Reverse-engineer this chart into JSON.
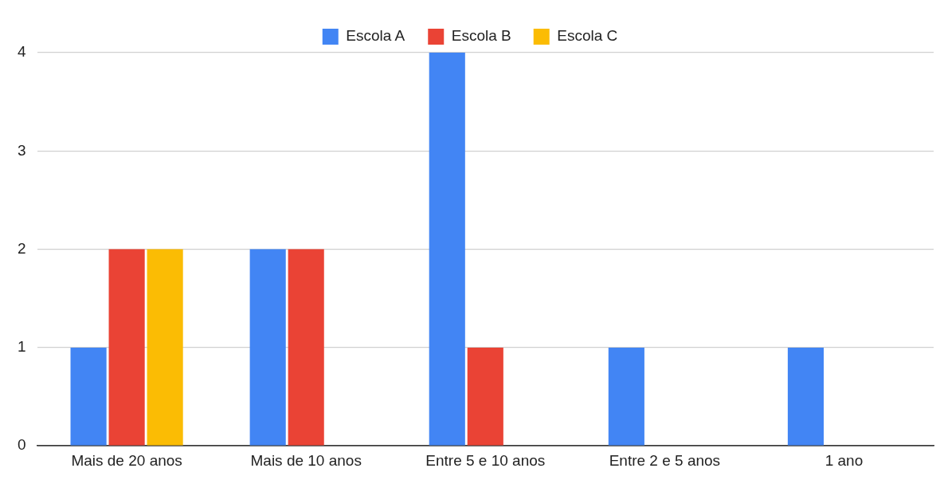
{
  "chart_data": {
    "type": "bar",
    "categories": [
      "Mais de 20 anos",
      "Mais de 10 anos",
      "Entre 5 e 10 anos",
      "Entre 2 e 5 anos",
      "1 ano"
    ],
    "series": [
      {
        "name": "Escola A",
        "color": "#4285f4",
        "values": [
          1,
          2,
          4,
          1,
          1
        ]
      },
      {
        "name": "Escola B",
        "color": "#ea4335",
        "values": [
          2,
          2,
          1,
          0,
          0
        ]
      },
      {
        "name": "Escola C",
        "color": "#fbbc04",
        "values": [
          2,
          0,
          0,
          0,
          0
        ]
      }
    ],
    "ylim": [
      0,
      4
    ],
    "yticks": [
      0,
      1,
      2,
      3,
      4
    ],
    "grid": "y",
    "legend": "top"
  }
}
